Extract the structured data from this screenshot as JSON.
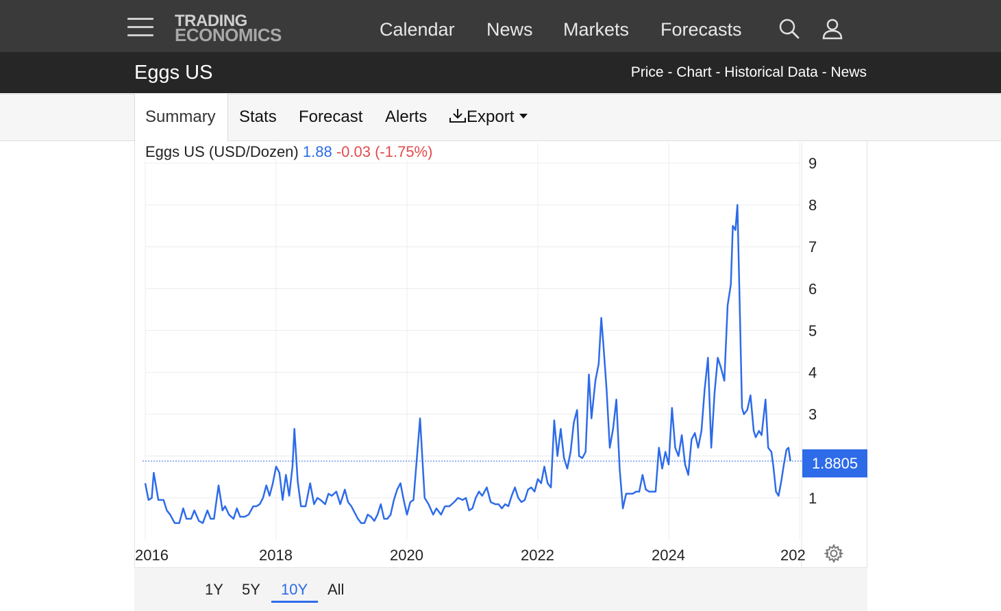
{
  "header": {
    "logo_line1": "TRADING",
    "logo_line2": "ECONOMICS",
    "nav": [
      "Calendar",
      "News",
      "Markets",
      "Forecasts"
    ]
  },
  "subheader": {
    "title": "Eggs US",
    "links": "Price - Chart - Historical Data - News"
  },
  "tabs": {
    "summary": "Summary",
    "stats": "Stats",
    "forecast": "Forecast",
    "alerts": "Alerts",
    "export": "Export"
  },
  "legend": {
    "name": "Eggs US (USD/Dozen)",
    "value": "1.88",
    "change": "-0.03 (-1.75%)"
  },
  "last_value_label": "1.8805",
  "ranges": [
    "1Y",
    "5Y",
    "10Y",
    "All"
  ],
  "active_range": "10Y",
  "colors": {
    "series": "#2d6be9",
    "change_negative": "#e34b4b",
    "topbar": "#3a3a3a",
    "subbar": "#262626"
  },
  "chart_data": {
    "type": "line",
    "title": "Eggs US (USD/Dozen)",
    "y_ticks": [
      "1",
      "2",
      "3",
      "4",
      "5",
      "6",
      "7",
      "8",
      "9"
    ],
    "x_ticks": [
      "2016",
      "2018",
      "2020",
      "2022",
      "2024",
      "202"
    ],
    "ylim": [
      0,
      9
    ],
    "xlim": [
      2016.0,
      2025.95
    ],
    "grid": true,
    "y_axis_side": "right",
    "last_value": 1.8805,
    "series": [
      {
        "values": [
          [
            2016.0,
            1.35
          ],
          [
            2016.05,
            0.95
          ],
          [
            2016.1,
            1.0
          ],
          [
            2016.13,
            1.6
          ],
          [
            2016.2,
            0.95
          ],
          [
            2016.28,
            0.95
          ],
          [
            2016.33,
            0.7
          ],
          [
            2016.38,
            0.6
          ],
          [
            2016.45,
            0.4
          ],
          [
            2016.52,
            0.4
          ],
          [
            2016.58,
            0.75
          ],
          [
            2016.63,
            0.5
          ],
          [
            2016.7,
            0.5
          ],
          [
            2016.75,
            0.7
          ],
          [
            2016.82,
            0.45
          ],
          [
            2016.88,
            0.4
          ],
          [
            2016.95,
            0.7
          ],
          [
            2017.0,
            0.5
          ],
          [
            2017.05,
            0.5
          ],
          [
            2017.12,
            1.3
          ],
          [
            2017.18,
            0.7
          ],
          [
            2017.22,
            0.8
          ],
          [
            2017.28,
            0.6
          ],
          [
            2017.35,
            0.5
          ],
          [
            2017.4,
            0.75
          ],
          [
            2017.45,
            0.55
          ],
          [
            2017.52,
            0.55
          ],
          [
            2017.58,
            0.6
          ],
          [
            2017.65,
            0.8
          ],
          [
            2017.7,
            0.8
          ],
          [
            2017.75,
            0.85
          ],
          [
            2017.8,
            1.0
          ],
          [
            2017.85,
            1.3
          ],
          [
            2017.9,
            1.05
          ],
          [
            2017.95,
            1.35
          ],
          [
            2018.0,
            1.75
          ],
          [
            2018.05,
            1.6
          ],
          [
            2018.1,
            0.95
          ],
          [
            2018.15,
            1.55
          ],
          [
            2018.2,
            1.05
          ],
          [
            2018.25,
            1.75
          ],
          [
            2018.28,
            2.65
          ],
          [
            2018.33,
            1.4
          ],
          [
            2018.38,
            0.8
          ],
          [
            2018.45,
            0.8
          ],
          [
            2018.52,
            1.35
          ],
          [
            2018.58,
            0.85
          ],
          [
            2018.63,
            1.0
          ],
          [
            2018.68,
            0.95
          ],
          [
            2018.75,
            0.85
          ],
          [
            2018.8,
            1.1
          ],
          [
            2018.85,
            1.05
          ],
          [
            2018.92,
            1.15
          ],
          [
            2018.98,
            0.85
          ],
          [
            2019.05,
            1.2
          ],
          [
            2019.1,
            0.9
          ],
          [
            2019.15,
            0.8
          ],
          [
            2019.2,
            0.65
          ],
          [
            2019.25,
            0.5
          ],
          [
            2019.3,
            0.4
          ],
          [
            2019.35,
            0.4
          ],
          [
            2019.4,
            0.6
          ],
          [
            2019.45,
            0.55
          ],
          [
            2019.5,
            0.45
          ],
          [
            2019.55,
            0.6
          ],
          [
            2019.6,
            0.85
          ],
          [
            2019.65,
            0.5
          ],
          [
            2019.7,
            0.5
          ],
          [
            2019.75,
            0.6
          ],
          [
            2019.8,
            0.95
          ],
          [
            2019.85,
            1.2
          ],
          [
            2019.9,
            1.35
          ],
          [
            2019.95,
            0.95
          ],
          [
            2020.0,
            0.6
          ],
          [
            2020.05,
            0.9
          ],
          [
            2020.1,
            0.95
          ],
          [
            2020.2,
            2.9
          ],
          [
            2020.27,
            1.0
          ],
          [
            2020.33,
            0.85
          ],
          [
            2020.4,
            0.6
          ],
          [
            2020.45,
            0.75
          ],
          [
            2020.52,
            0.6
          ],
          [
            2020.58,
            0.8
          ],
          [
            2020.65,
            0.8
          ],
          [
            2020.72,
            0.9
          ],
          [
            2020.78,
            1.0
          ],
          [
            2020.85,
            0.95
          ],
          [
            2020.9,
            1.0
          ],
          [
            2020.95,
            0.7
          ],
          [
            2021.0,
            0.75
          ],
          [
            2021.05,
            1.0
          ],
          [
            2021.1,
            1.15
          ],
          [
            2021.15,
            1.05
          ],
          [
            2021.22,
            1.25
          ],
          [
            2021.28,
            0.9
          ],
          [
            2021.35,
            0.85
          ],
          [
            2021.4,
            0.85
          ],
          [
            2021.45,
            0.75
          ],
          [
            2021.5,
            0.85
          ],
          [
            2021.55,
            0.8
          ],
          [
            2021.6,
            1.05
          ],
          [
            2021.65,
            1.25
          ],
          [
            2021.7,
            1.0
          ],
          [
            2021.75,
            0.9
          ],
          [
            2021.8,
            0.95
          ],
          [
            2021.85,
            1.2
          ],
          [
            2021.9,
            1.25
          ],
          [
            2021.95,
            1.15
          ],
          [
            2022.0,
            1.45
          ],
          [
            2022.05,
            1.35
          ],
          [
            2022.1,
            1.75
          ],
          [
            2022.15,
            1.35
          ],
          [
            2022.2,
            1.25
          ],
          [
            2022.25,
            2.85
          ],
          [
            2022.3,
            2.0
          ],
          [
            2022.35,
            2.65
          ],
          [
            2022.4,
            1.95
          ],
          [
            2022.45,
            1.7
          ],
          [
            2022.5,
            2.1
          ],
          [
            2022.55,
            2.8
          ],
          [
            2022.6,
            3.1
          ],
          [
            2022.63,
            2.0
          ],
          [
            2022.68,
            1.95
          ],
          [
            2022.73,
            2.1
          ],
          [
            2022.78,
            3.95
          ],
          [
            2022.82,
            2.9
          ],
          [
            2022.88,
            3.8
          ],
          [
            2022.93,
            4.2
          ],
          [
            2022.97,
            5.3
          ],
          [
            2023.0,
            4.7
          ],
          [
            2023.05,
            3.6
          ],
          [
            2023.1,
            2.2
          ],
          [
            2023.15,
            2.65
          ],
          [
            2023.2,
            3.35
          ],
          [
            2023.25,
            1.7
          ],
          [
            2023.3,
            0.75
          ],
          [
            2023.35,
            1.1
          ],
          [
            2023.4,
            1.1
          ],
          [
            2023.45,
            1.1
          ],
          [
            2023.5,
            1.15
          ],
          [
            2023.55,
            1.15
          ],
          [
            2023.6,
            1.55
          ],
          [
            2023.65,
            1.2
          ],
          [
            2023.7,
            1.15
          ],
          [
            2023.75,
            1.15
          ],
          [
            2023.8,
            1.15
          ],
          [
            2023.85,
            2.2
          ],
          [
            2023.9,
            1.7
          ],
          [
            2023.95,
            2.1
          ],
          [
            2024.0,
            1.8
          ],
          [
            2024.05,
            3.15
          ],
          [
            2024.1,
            2.2
          ],
          [
            2024.15,
            2.0
          ],
          [
            2024.2,
            2.5
          ],
          [
            2024.25,
            1.8
          ],
          [
            2024.3,
            1.55
          ],
          [
            2024.35,
            2.4
          ],
          [
            2024.4,
            2.55
          ],
          [
            2024.45,
            2.2
          ],
          [
            2024.5,
            2.6
          ],
          [
            2024.55,
            3.6
          ],
          [
            2024.6,
            4.35
          ],
          [
            2024.65,
            2.2
          ],
          [
            2024.7,
            3.5
          ],
          [
            2024.75,
            4.35
          ],
          [
            2024.8,
            4.1
          ],
          [
            2024.85,
            3.8
          ],
          [
            2024.9,
            5.6
          ],
          [
            2024.95,
            6.1
          ],
          [
            2024.98,
            7.5
          ],
          [
            2025.02,
            7.4
          ],
          [
            2025.05,
            8.0
          ],
          [
            2025.08,
            6.0
          ],
          [
            2025.12,
            3.15
          ],
          [
            2025.15,
            3.0
          ],
          [
            2025.2,
            3.1
          ],
          [
            2025.25,
            3.45
          ],
          [
            2025.3,
            2.6
          ],
          [
            2025.33,
            2.45
          ],
          [
            2025.38,
            2.6
          ],
          [
            2025.42,
            2.5
          ],
          [
            2025.48,
            3.35
          ],
          [
            2025.52,
            2.2
          ],
          [
            2025.57,
            2.1
          ],
          [
            2025.6,
            1.75
          ],
          [
            2025.64,
            1.15
          ],
          [
            2025.68,
            1.05
          ],
          [
            2025.72,
            1.4
          ],
          [
            2025.76,
            1.8
          ],
          [
            2025.8,
            2.15
          ],
          [
            2025.83,
            2.2
          ],
          [
            2025.86,
            1.88
          ]
        ]
      }
    ]
  }
}
